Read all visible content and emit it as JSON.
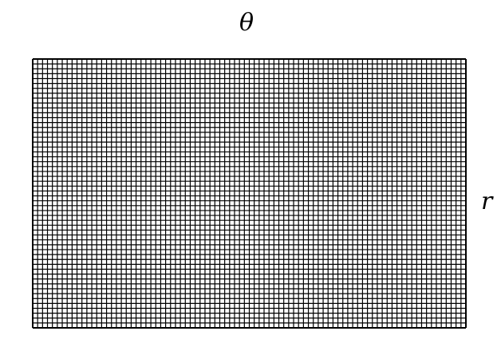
{
  "labels": {
    "theta": "θ",
    "r": "r"
  },
  "grid": {
    "columns": 88,
    "rows": 55,
    "line_color": "#000000",
    "background": "#ffffff"
  }
}
